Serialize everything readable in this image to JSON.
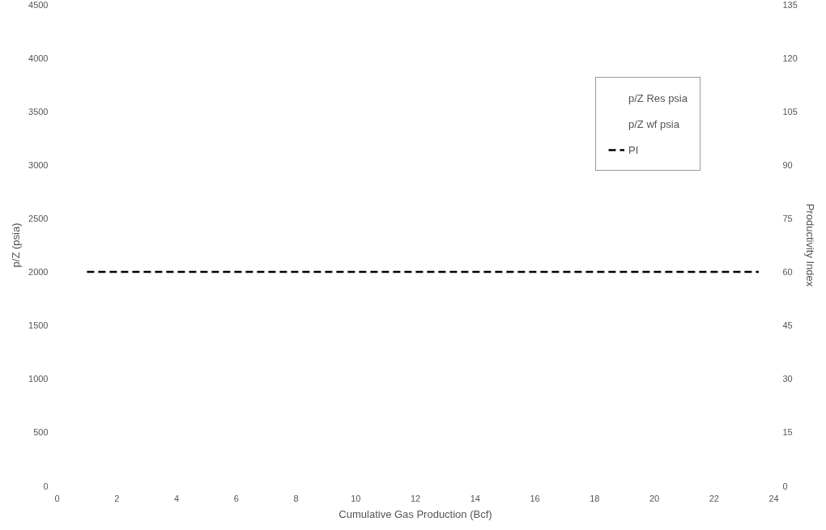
{
  "chart_data": {
    "type": "line",
    "xlabel": "Cumulative Gas Production (Bcf)",
    "ylabel": "p/Z (psia)",
    "y2label": "Productivity Index",
    "xlim": [
      0,
      24
    ],
    "xticks": [
      0,
      2,
      4,
      6,
      8,
      10,
      12,
      14,
      16,
      18,
      20,
      22,
      24
    ],
    "ylim": [
      0,
      4500
    ],
    "yticks": [
      0,
      500,
      1000,
      1500,
      2000,
      2500,
      3000,
      3500,
      4000,
      4500
    ],
    "y2lim": [
      0,
      135
    ],
    "y2ticks": [
      0,
      15,
      30,
      45,
      60,
      75,
      90,
      105,
      120,
      135
    ],
    "grid": false,
    "legend": "top right",
    "marker": "none",
    "series": [
      {
        "name": "p/Z Res psia"
      },
      {
        "name": "p/Z wf psia"
      },
      {
        "name": "PI",
        "color": "#000000",
        "axis": "y2",
        "line_style": "dashed",
        "x": [
          1,
          23.5
        ],
        "values": [
          60,
          60
        ]
      }
    ]
  }
}
